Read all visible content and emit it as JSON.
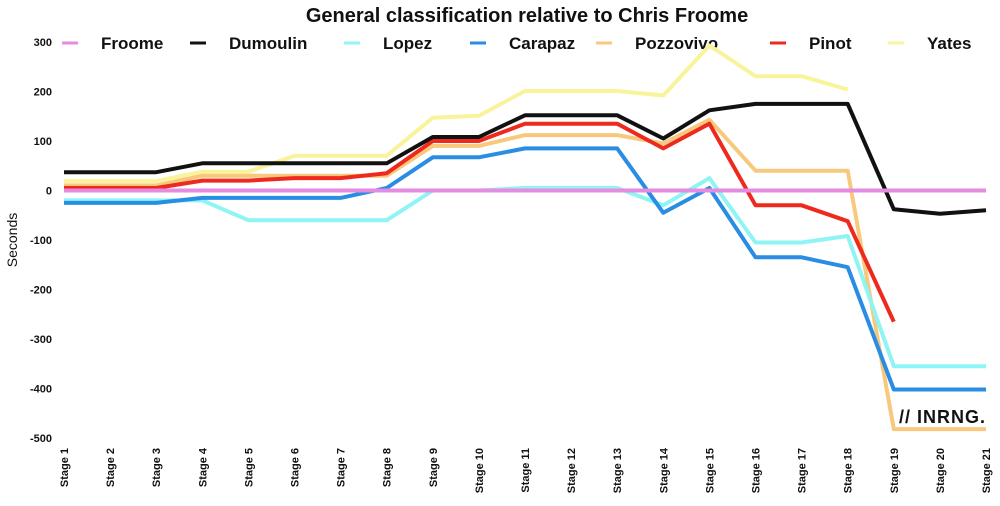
{
  "chart_data": {
    "type": "line",
    "title": "General classification relative to Chris Froome",
    "xlabel": "",
    "ylabel": "Seconds",
    "ylim": [
      -500,
      300
    ],
    "yticks": [
      300,
      200,
      100,
      0,
      -100,
      -200,
      -300,
      -400,
      -500
    ],
    "legend_position": "top",
    "grid": false,
    "watermark": "// INRNG.",
    "categories": [
      "Stage 1",
      "Stage 2",
      "Stage 3",
      "Stage 4",
      "Stage 5",
      "Stage 6",
      "Stage 7",
      "Stage 8",
      "Stage 9",
      "Stage 10",
      "Stage 11",
      "Stage 12",
      "Stage 13",
      "Stage 14",
      "Stage 15",
      "Stage 16",
      "Stage 17",
      "Stage 18",
      "Stage 19",
      "Stage 20",
      "Stage 21"
    ],
    "series": [
      {
        "name": "Yates",
        "color": "#f9f39b",
        "values": [
          19,
          19,
          19,
          38,
          38,
          70,
          70,
          70,
          147,
          151,
          201,
          201,
          201,
          192,
          293,
          231,
          231,
          204,
          null,
          null,
          null
        ]
      },
      {
        "name": "Pozzovivo",
        "color": "#f8c97c",
        "values": [
          10,
          10,
          10,
          30,
          30,
          30,
          30,
          30,
          90,
          90,
          112,
          112,
          112,
          95,
          143,
          40,
          40,
          40,
          -482,
          -482,
          -482
        ]
      },
      {
        "name": "Pinot",
        "color": "#ee2a1f",
        "values": [
          5,
          5,
          5,
          20,
          20,
          25,
          25,
          35,
          100,
          100,
          135,
          135,
          135,
          85,
          135,
          -30,
          -30,
          -62,
          -265,
          null,
          null
        ]
      },
      {
        "name": "Lopez",
        "color": "#8ef4f4",
        "values": [
          -20,
          -20,
          -20,
          -20,
          -60,
          -60,
          -60,
          -60,
          0,
          0,
          5,
          5,
          5,
          -30,
          25,
          -105,
          -105,
          -92,
          -355,
          -355,
          -355
        ]
      },
      {
        "name": "Carapaz",
        "color": "#2a8de4",
        "values": [
          -25,
          -25,
          -25,
          -15,
          -15,
          -15,
          -15,
          5,
          67,
          67,
          85,
          85,
          85,
          -45,
          5,
          -135,
          -135,
          -155,
          -402,
          -402,
          -402
        ]
      },
      {
        "name": "Dumoulin",
        "color": "#111111",
        "values": [
          37,
          37,
          37,
          55,
          55,
          55,
          55,
          55,
          108,
          108,
          152,
          152,
          152,
          105,
          162,
          175,
          175,
          175,
          -38,
          -47,
          -40
        ]
      },
      {
        "name": "Froome",
        "color": "#e58be0",
        "values": [
          0,
          0,
          0,
          0,
          0,
          0,
          0,
          0,
          0,
          0,
          0,
          0,
          0,
          0,
          0,
          0,
          0,
          0,
          0,
          0,
          0
        ]
      }
    ],
    "legend_order": [
      "Froome",
      "Dumoulin",
      "Lopez",
      "Carapaz",
      "Pozzovivo",
      "Pinot",
      "Yates"
    ]
  }
}
